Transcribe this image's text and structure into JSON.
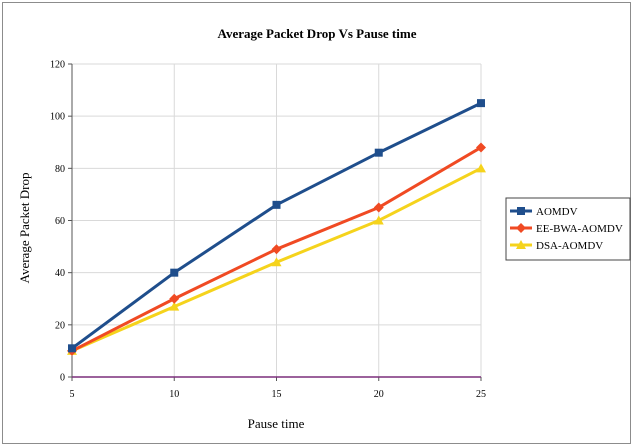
{
  "chart_data": {
    "type": "line",
    "title": "Average Packet Drop Vs Pause time",
    "xlabel": "Pause time",
    "ylabel": "Average Packet Drop",
    "x": [
      5,
      10,
      15,
      20,
      25
    ],
    "xlim": [
      5,
      25
    ],
    "ylim": [
      0,
      120
    ],
    "yticks": [
      0,
      20,
      40,
      60,
      80,
      100,
      120
    ],
    "grid": true,
    "legend_position": "right",
    "series": [
      {
        "name": "AOMDV",
        "values": [
          11,
          40,
          66,
          86,
          105
        ],
        "color": "#1f4e8c",
        "marker": "square"
      },
      {
        "name": "EE-BWA-AOMDV",
        "values": [
          10,
          30,
          49,
          65,
          88
        ],
        "color": "#f04a23",
        "marker": "diamond"
      },
      {
        "name": "DSA-AOMDV",
        "values": [
          10,
          27,
          44,
          60,
          80
        ],
        "color": "#f5d31c",
        "marker": "triangle"
      }
    ],
    "axis_color": "#7b2f7b"
  }
}
